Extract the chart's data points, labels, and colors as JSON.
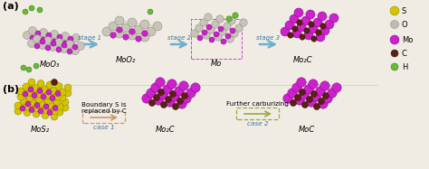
{
  "fig_width": 4.74,
  "fig_height": 1.87,
  "dpi": 100,
  "bg_color": "#f0ece4",
  "panel_a_label": "(a)",
  "panel_b_label": "(b)",
  "row_a_labels": [
    "MoO₃",
    "MoO₂",
    "Mo",
    "Mo₂C"
  ],
  "row_b_labels": [
    "MoS₂",
    "Mo₂C",
    "MoC"
  ],
  "stage_labels": [
    "stage 1",
    "stage 2",
    "stage 3"
  ],
  "case_labels": [
    "case 1",
    "case 2"
  ],
  "case1_text": "Boundary S is\nreplaced by C",
  "case2_text": "Further carburizing",
  "legend_items": [
    {
      "label": "S",
      "color": "#d4c400",
      "edgecolor": "#888800",
      "r": 5.0
    },
    {
      "label": "O",
      "color": "#c0bcb0",
      "edgecolor": "#888880",
      "r": 4.5
    },
    {
      "label": "Mo",
      "color": "#cc22cc",
      "edgecolor": "#880088",
      "r": 5.0
    },
    {
      "label": "C",
      "color": "#5a2010",
      "edgecolor": "#3a1000",
      "r": 4.0
    },
    {
      "label": "H",
      "color": "#66bb33",
      "edgecolor": "#337711",
      "r": 4.0
    }
  ],
  "col_S": "#d4c400",
  "col_O": "#c8c4b8",
  "col_Mo": "#cc22cc",
  "col_C": "#5a2010",
  "col_H": "#66bb33",
  "ec_S": "#888800",
  "ec_O": "#888880",
  "ec_Mo": "#880088",
  "ec_C": "#3a1000",
  "ec_H": "#337711",
  "arrow_color": "#6ab0d0",
  "case1_arrow_color": "#cc9966",
  "case2_arrow_color": "#99aa44"
}
